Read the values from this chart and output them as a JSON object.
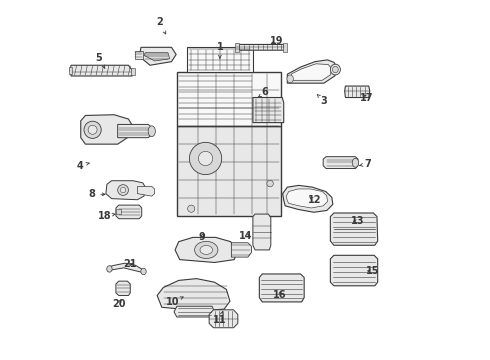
{
  "bg_color": "#ffffff",
  "fig_width": 4.9,
  "fig_height": 3.6,
  "dpi": 100,
  "line_color": "#3a3a3a",
  "label_fontsize": 7,
  "parts_labels": {
    "1": [
      0.43,
      0.87,
      0.43,
      0.83
    ],
    "2": [
      0.263,
      0.94,
      0.28,
      0.905
    ],
    "3": [
      0.72,
      0.72,
      0.7,
      0.74
    ],
    "4": [
      0.04,
      0.54,
      0.075,
      0.55
    ],
    "5": [
      0.093,
      0.84,
      0.11,
      0.81
    ],
    "6": [
      0.556,
      0.745,
      0.536,
      0.73
    ],
    "7": [
      0.843,
      0.545,
      0.818,
      0.54
    ],
    "8": [
      0.073,
      0.46,
      0.12,
      0.46
    ],
    "9": [
      0.38,
      0.34,
      0.388,
      0.36
    ],
    "10": [
      0.298,
      0.16,
      0.33,
      0.175
    ],
    "11": [
      0.43,
      0.11,
      0.438,
      0.135
    ],
    "12": [
      0.693,
      0.445,
      0.672,
      0.455
    ],
    "13": [
      0.815,
      0.385,
      0.792,
      0.385
    ],
    "14": [
      0.503,
      0.345,
      0.523,
      0.35
    ],
    "15": [
      0.855,
      0.245,
      0.832,
      0.248
    ],
    "16": [
      0.598,
      0.18,
      0.6,
      0.2
    ],
    "17": [
      0.84,
      0.73,
      0.82,
      0.74
    ],
    "18": [
      0.108,
      0.4,
      0.14,
      0.405
    ],
    "19": [
      0.588,
      0.888,
      0.566,
      0.875
    ],
    "20": [
      0.148,
      0.155,
      0.16,
      0.175
    ],
    "21": [
      0.18,
      0.265,
      0.195,
      0.27
    ]
  }
}
